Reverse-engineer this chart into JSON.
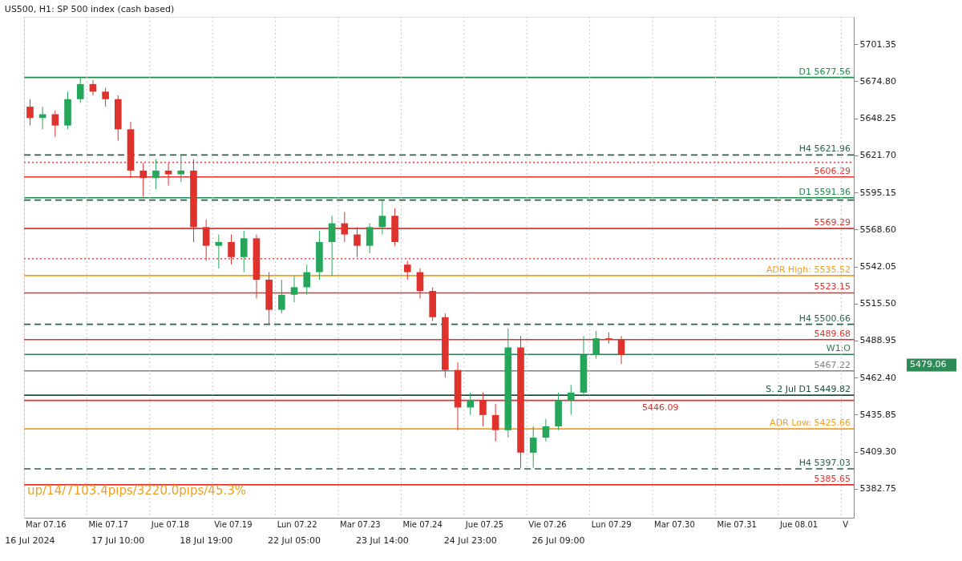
{
  "chart_data": {
    "type": "candlestick",
    "title": "US500, H1:  SP 500 index (cash based)",
    "categories": [
      "16 Jul 2024",
      null,
      null,
      null,
      null,
      null,
      null,
      "17 Jul 10:00",
      null,
      null,
      null,
      null,
      null,
      null,
      "18 Jul 19:00",
      null,
      null,
      null,
      null,
      null,
      null,
      "22 Jul 05:00",
      null,
      null,
      null,
      null,
      null,
      null,
      "23 Jul 14:00",
      null,
      null,
      null,
      null,
      null,
      null,
      "24 Jul 23:00",
      null,
      null,
      null,
      null,
      null,
      null,
      "26 Jul 09:00",
      null,
      null,
      null,
      null,
      null,
      null,
      null,
      null,
      null,
      null,
      null,
      null,
      null,
      null,
      null,
      null,
      null,
      null,
      null,
      null,
      null,
      null,
      null
    ],
    "ohlc": [
      [
        5656.6,
        5662.0,
        5643.1,
        5648.5
      ],
      [
        5648.5,
        5656.6,
        5640.4,
        5651.2
      ],
      [
        5651.2,
        5653.9,
        5635.0,
        5643.1
      ],
      [
        5643.1,
        5667.4,
        5640.4,
        5662.0
      ],
      [
        5662.0,
        5677.1,
        5659.3,
        5672.8
      ],
      [
        5672.8,
        5675.5,
        5664.7,
        5667.4
      ],
      [
        5667.4,
        5670.1,
        5656.6,
        5662.0
      ],
      [
        5662.0,
        5664.7,
        5632.3,
        5640.4
      ],
      [
        5640.4,
        5645.8,
        5605.4,
        5610.8
      ],
      [
        5610.8,
        5616.2,
        5591.9,
        5605.4
      ],
      [
        5605.4,
        5618.9,
        5597.3,
        5610.8
      ],
      [
        5610.8,
        5616.2,
        5600.0,
        5608.1
      ],
      [
        5608.1,
        5621.6,
        5602.7,
        5610.8
      ],
      [
        5610.8,
        5618.9,
        5559.6,
        5570.3
      ],
      [
        5570.3,
        5575.7,
        5546.1,
        5556.9
      ],
      [
        5556.9,
        5565.0,
        5540.7,
        5559.6
      ],
      [
        5559.6,
        5565.0,
        5543.4,
        5548.8
      ],
      [
        5548.8,
        5567.7,
        5538.0,
        5562.3
      ],
      [
        5562.3,
        5565.0,
        5519.1,
        5532.6
      ],
      [
        5532.6,
        5538.0,
        5500.3,
        5511.0
      ],
      [
        5511.0,
        5532.6,
        5508.4,
        5521.8
      ],
      [
        5521.8,
        5535.3,
        5516.4,
        5527.2
      ],
      [
        5527.2,
        5543.4,
        5521.8,
        5538.0
      ],
      [
        5538.0,
        5567.7,
        5532.6,
        5559.6
      ],
      [
        5559.6,
        5578.4,
        5535.3,
        5573.0
      ],
      [
        5573.0,
        5581.1,
        5559.6,
        5565.0
      ],
      [
        5565.0,
        5570.3,
        5548.8,
        5556.9
      ],
      [
        5556.9,
        5573.0,
        5551.5,
        5570.3
      ],
      [
        5570.3,
        5590.3,
        5565.0,
        5578.4
      ],
      [
        5578.4,
        5583.8,
        5556.9,
        5559.6
      ],
      [
        5543.4,
        5546.1,
        5532.6,
        5538.0
      ],
      [
        5538.0,
        5540.7,
        5519.1,
        5524.5
      ],
      [
        5524.5,
        5527.2,
        5503.0,
        5505.7
      ],
      [
        5505.7,
        5508.4,
        5462.5,
        5467.9
      ],
      [
        5467.9,
        5473.3,
        5424.8,
        5441.0
      ],
      [
        5441.0,
        5451.7,
        5435.6,
        5446.3
      ],
      [
        5446.3,
        5451.7,
        5427.5,
        5435.6
      ],
      [
        5435.6,
        5443.7,
        5416.7,
        5424.8
      ],
      [
        5424.8,
        5497.6,
        5419.4,
        5484.1
      ],
      [
        5484.1,
        5492.2,
        5397.8,
        5408.6
      ],
      [
        5408.6,
        5427.5,
        5397.8,
        5419.4
      ],
      [
        5419.4,
        5432.9,
        5416.7,
        5427.5
      ],
      [
        5427.5,
        5451.7,
        5424.8,
        5446.3
      ],
      [
        5446.3,
        5457.1,
        5435.6,
        5451.7
      ],
      [
        5451.7,
        5492.2,
        5449.0,
        5478.7
      ],
      [
        5478.7,
        5495.9,
        5476.0,
        5490.6
      ],
      [
        5490.6,
        5494.9,
        5486.8,
        5489.5
      ],
      [
        5489.5,
        5492.2,
        5472.2,
        5478.7
      ],
      null,
      null,
      null,
      null,
      null,
      null,
      null,
      null,
      null,
      null,
      null,
      null,
      null,
      null,
      null,
      null,
      null,
      null
    ],
    "colors": [
      "#e0322d",
      "#26a65b",
      "#e0322d",
      "#26a65b",
      "#26a65b",
      "#e0322d",
      "#e0322d",
      "#e0322d",
      "#e0322d",
      "#e0322d",
      "#26a65b",
      "#e0322d",
      "#26a65b",
      "#e0322d",
      "#e0322d",
      "#26a65b",
      "#e0322d",
      "#26a65b",
      "#e0322d",
      "#e0322d",
      "#26a65b",
      "#26a65b",
      "#26a65b",
      "#26a65b",
      "#26a65b",
      "#e0322d",
      "#e0322d",
      "#26a65b",
      "#26a65b",
      "#e0322d",
      "#e0322d",
      "#e0322d",
      "#e0322d",
      "#e0322d",
      "#e0322d",
      "#26a65b",
      "#e0322d",
      "#e0322d",
      "#26a65b",
      "#e0322d",
      "#26a65b",
      "#26a65b",
      "#26a65b",
      "#26a65b",
      "#26a65b",
      "#26a65b",
      "#e0322d",
      "#e0322d",
      null,
      null,
      null,
      null,
      null,
      null,
      null,
      null,
      null,
      null,
      null,
      null,
      null,
      null,
      null,
      null,
      null,
      null
    ],
    "ylim": [
      5362,
      5721
    ],
    "yticks": [
      {
        "value": 5382.75,
        "label": "5382.75"
      },
      {
        "value": 5409.3,
        "label": "5409.30"
      },
      {
        "value": 5435.85,
        "label": "5435.85"
      },
      {
        "value": 5462.4,
        "label": "5462.40"
      },
      {
        "value": 5488.95,
        "label": "5488.95"
      },
      {
        "value": 5515.5,
        "label": "5515.50"
      },
      {
        "value": 5542.05,
        "label": "5542.05"
      },
      {
        "value": 5568.6,
        "label": "5568.60"
      },
      {
        "value": 5595.15,
        "label": "5595.15"
      },
      {
        "value": 5621.7,
        "label": "5621.70"
      },
      {
        "value": 5648.25,
        "label": "5648.25"
      },
      {
        "value": 5674.8,
        "label": "5674.80"
      },
      {
        "value": 5701.35,
        "label": "5701.35"
      }
    ],
    "grid": "x",
    "ref_lines": [
      {
        "axis": "y",
        "value": 5677.56,
        "label": "D1 5677.56",
        "color": "#1e8a4a",
        "line_style": "solid"
      },
      {
        "axis": "y",
        "value": 5621.96,
        "label": "H4 5621.96",
        "color": "#2f5f4f",
        "line_style": "dashed"
      },
      {
        "axis": "y",
        "value": 5616.7,
        "label": null,
        "color": "#e05050",
        "line_style": "dotted"
      },
      {
        "axis": "y",
        "value": 5606.29,
        "label": "5606.29",
        "color": "#e0322d",
        "line_style": "solid"
      },
      {
        "axis": "y",
        "value": 5591.36,
        "label": "D1 5591.36",
        "color": "#1e8a4a",
        "line_style": "solid"
      },
      {
        "axis": "y",
        "value": 5589.7,
        "label": null,
        "color": "#2f5f4f",
        "line_style": "dashed"
      },
      {
        "axis": "y",
        "value": 5569.29,
        "label": "5569.29",
        "color": "#e0322d",
        "line_style": "solid"
      },
      {
        "axis": "y",
        "value": 5547.7,
        "label": null,
        "color": "#e05050",
        "line_style": "dotted"
      },
      {
        "axis": "y",
        "value": 5535.52,
        "label": "ADR High: 5535.52",
        "color": "#f0a020",
        "line_style": "solid"
      },
      {
        "axis": "y",
        "value": 5523.15,
        "label": "5523.15",
        "color": "#e0322d",
        "line_style": "solid"
      },
      {
        "axis": "y",
        "value": 5500.66,
        "label": "H4 5500.66",
        "color": "#2f5f4f",
        "line_style": "dashed"
      },
      {
        "axis": "y",
        "value": 5489.68,
        "label": "5489.68",
        "color": "#e0322d",
        "line_style": "solid"
      },
      {
        "axis": "y",
        "value": 5479.06,
        "label": "W1:O",
        "color": "#2e7d4f",
        "line_style": "solid"
      },
      {
        "axis": "y",
        "value": 5467.22,
        "label": "5467.22",
        "color": "#808080",
        "line_style": "solid"
      },
      {
        "axis": "y",
        "value": 5449.82,
        "label": "S. 2 Jul D1 5449.82",
        "color": "#1b4d3e",
        "line_style": "solid"
      },
      {
        "axis": "y",
        "value": 5446.09,
        "label": "5446.09",
        "color": "#e0322d",
        "line_style": "solid"
      },
      {
        "axis": "y",
        "value": 5425.66,
        "label": "ADR Low: 5425.66",
        "color": "#f0a020",
        "line_style": "solid"
      },
      {
        "axis": "y",
        "value": 5397.03,
        "label": "H4 5397.03",
        "color": "#2f5f4f",
        "line_style": "dashed"
      },
      {
        "axis": "y",
        "value": 5385.65,
        "label": "5385.65",
        "color": "#e0322d",
        "line_style": "solid"
      }
    ],
    "annotations": [
      "up/14/7103.4pips/3220.0pips/45.3%",
      "5479.06",
      "Mar 07.16",
      "Mie 07.17",
      "Jue 07.18",
      "Vie 07.19",
      "Lun 07.22",
      "Mar 07.23",
      "Mie 07.24",
      "Jue 07.25",
      "Vie 07.26",
      "Lun 07.29",
      "Mar 07.30",
      "Mie 07.31",
      "Jue 08.01",
      "V"
    ]
  }
}
